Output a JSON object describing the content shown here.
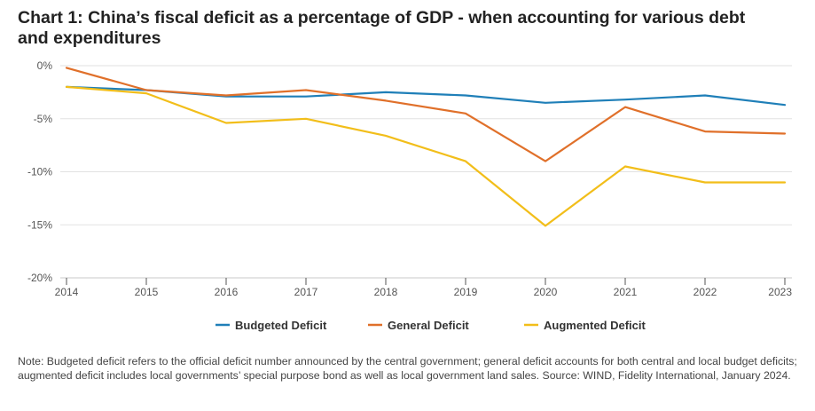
{
  "title": "Chart 1: China’s fiscal deficit as a percentage of GDP - when accounting for various debt and expenditures",
  "note": "Note: Budgeted deficit refers to the official deficit number announced by the central government; general deficit accounts for both central and local budget deficits; augmented deficit includes local governments’ special purpose bond as well as local government land sales. Source: WIND, Fidelity International, January 2024.",
  "chart_data": {
    "type": "line",
    "title": "Chart 1: China’s fiscal deficit as a percentage of GDP - when accounting for various debt and expenditures",
    "xlabel": "",
    "ylabel": "",
    "x": [
      "2014",
      "2015",
      "2016",
      "2017",
      "2018",
      "2019",
      "2020",
      "2021",
      "2022",
      "2023"
    ],
    "ylim": [
      -20,
      0
    ],
    "yticks": [
      0,
      -5,
      -10,
      -15,
      -20
    ],
    "ytick_labels": [
      "0%",
      "-5%",
      "-10%",
      "-15%",
      "-20%"
    ],
    "grid": "horizontal",
    "legend_position": "bottom-center",
    "series": [
      {
        "name": "Budgeted Deficit",
        "color": "#1f7fb8",
        "values": [
          -2.0,
          -2.3,
          -2.9,
          -2.9,
          -2.5,
          -2.8,
          -3.5,
          -3.2,
          -2.8,
          -3.7
        ]
      },
      {
        "name": "General Deficit",
        "color": "#e0702a",
        "values": [
          -0.2,
          -2.3,
          -2.8,
          -2.3,
          -3.3,
          -4.5,
          -9.0,
          -3.9,
          -6.2,
          -6.4
        ]
      },
      {
        "name": "Augmented Deficit",
        "color": "#f2be1a",
        "values": [
          -2.0,
          -2.6,
          -5.4,
          -5.0,
          -6.6,
          -9.0,
          -15.1,
          -9.5,
          -11.0,
          -11.0
        ]
      }
    ]
  }
}
